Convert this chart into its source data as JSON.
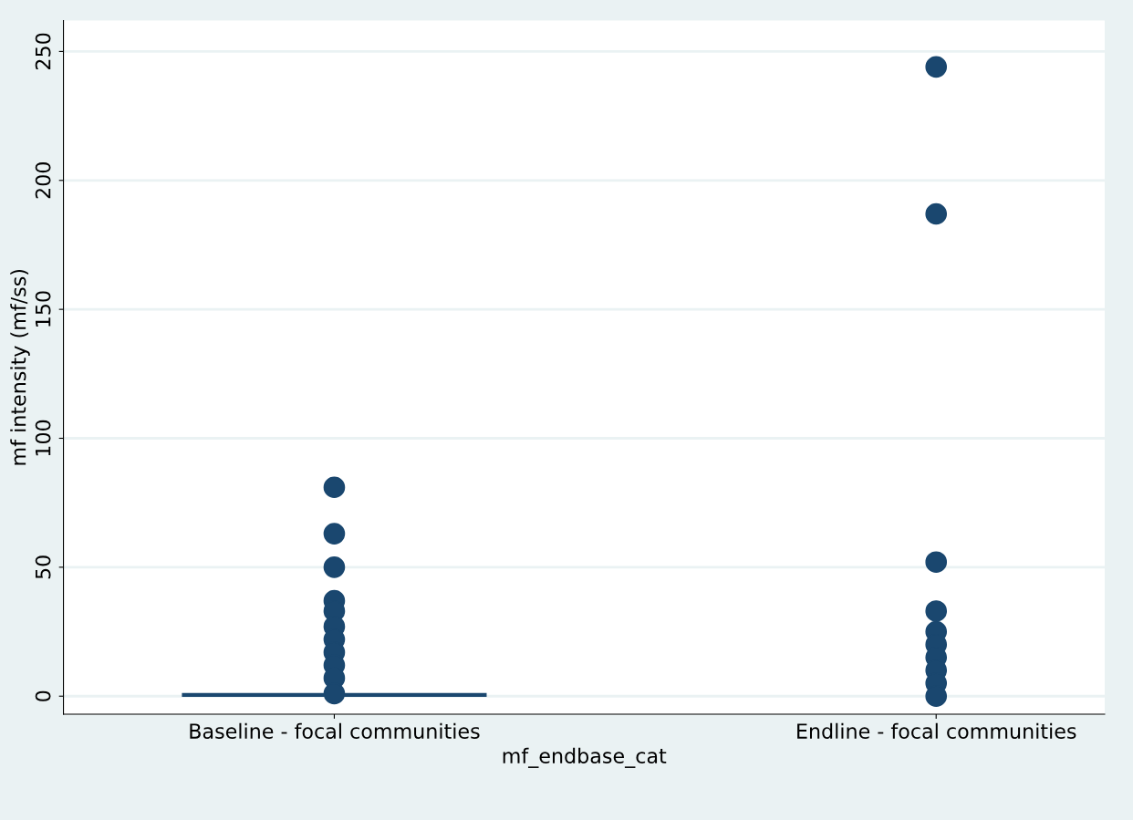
{
  "chart_data": {
    "type": "scatter",
    "xlabel": "mf_endbase_cat",
    "ylabel": "mf intensity (mf/ss)",
    "categories": [
      "Baseline - focal communities",
      "Endline - focal communities"
    ],
    "series": [
      {
        "color": "#1a476f",
        "x": [
          "Baseline - focal communities",
          "Baseline - focal communities",
          "Baseline - focal communities",
          "Baseline - focal communities",
          "Baseline - focal communities",
          "Baseline - focal communities",
          "Baseline - focal communities",
          "Baseline - focal communities",
          "Baseline - focal communities",
          "Baseline - focal communities",
          "Baseline - focal communities"
        ],
        "values": [
          81,
          63,
          50,
          37,
          33,
          27,
          22,
          17,
          12,
          7,
          1
        ]
      },
      {
        "color": "#1a476f",
        "x": [
          "Endline - focal communities",
          "Endline - focal communities",
          "Endline - focal communities",
          "Endline - focal communities",
          "Endline - focal communities",
          "Endline - focal communities",
          "Endline - focal communities",
          "Endline - focal communities",
          "Endline - focal communities",
          "Endline - focal communities"
        ],
        "values": [
          244,
          187,
          52,
          33,
          25,
          20,
          15,
          10,
          5,
          0
        ]
      }
    ],
    "ref_lines": [
      {
        "axis": "y",
        "value": 0.5,
        "color": "#1a476f",
        "line_style": "solid"
      }
    ],
    "ylim": [
      -7,
      262
    ],
    "yticks": [
      0,
      50,
      100,
      150,
      200,
      250
    ],
    "grid": "y",
    "marker": "circle"
  }
}
